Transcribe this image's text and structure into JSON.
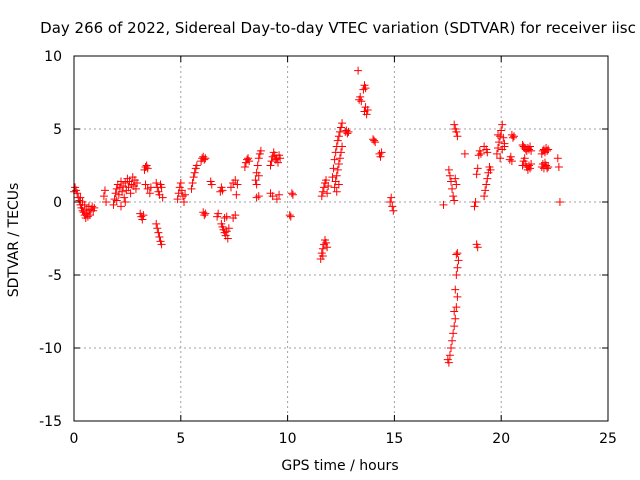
{
  "chart_data": {
    "type": "scatter",
    "title": "Day 266 of 2022, Sidereal Day-to-day VTEC variation (SDTVAR) for receiver iisc",
    "xlabel": "GPS time / hours",
    "ylabel": "SDTVAR / TECUs",
    "xlim": [
      0,
      25
    ],
    "ylim": [
      -15,
      10
    ],
    "xticks": [
      "0",
      "5",
      "10",
      "15",
      "20",
      "25"
    ],
    "yticks": [
      "10",
      "5",
      "0",
      "-5",
      "-10",
      "-15"
    ],
    "xtick_values": [
      0,
      5,
      10,
      15,
      20,
      25
    ],
    "ytick_values": [
      10,
      5,
      0,
      -5,
      -10,
      -15
    ],
    "grid": true,
    "marker": "plus",
    "color": "#ff0000",
    "series": [
      {
        "name": "SDTVAR",
        "points": [
          [
            0.0,
            0.7
          ],
          [
            0.05,
            1.0
          ],
          [
            0.1,
            0.8
          ],
          [
            0.15,
            0.6
          ],
          [
            0.2,
            0.3
          ],
          [
            0.25,
            0.1
          ],
          [
            0.3,
            -0.2
          ],
          [
            0.35,
            -0.4
          ],
          [
            0.4,
            -0.6
          ],
          [
            0.45,
            -0.7
          ],
          [
            0.5,
            -0.9
          ],
          [
            0.55,
            -1.1
          ],
          [
            0.6,
            -0.8
          ],
          [
            0.65,
            -1.0
          ],
          [
            0.7,
            -0.6
          ],
          [
            0.75,
            -0.9
          ],
          [
            0.8,
            -0.5
          ],
          [
            0.85,
            -0.3
          ],
          [
            0.9,
            -0.6
          ],
          [
            0.95,
            -0.4
          ],
          [
            0.3,
            0.3
          ],
          [
            0.4,
            0.0
          ],
          [
            0.5,
            -0.2
          ],
          [
            0.6,
            -0.5
          ],
          [
            0.7,
            -0.3
          ],
          [
            1.4,
            0.4
          ],
          [
            1.45,
            0.8
          ],
          [
            1.5,
            0.0
          ],
          [
            1.85,
            -0.2
          ],
          [
            1.9,
            0.2
          ],
          [
            1.95,
            0.6
          ],
          [
            2.0,
            0.9
          ],
          [
            2.05,
            1.2
          ],
          [
            2.1,
            0.5
          ],
          [
            2.15,
            1.0
          ],
          [
            2.2,
            1.4
          ],
          [
            2.25,
            0.7
          ],
          [
            2.3,
            1.1
          ],
          [
            2.35,
            0.3
          ],
          [
            2.4,
            1.3
          ],
          [
            2.45,
            0.8
          ],
          [
            2.5,
            1.6
          ],
          [
            2.55,
            1.0
          ],
          [
            2.6,
            1.4
          ],
          [
            2.65,
            0.6
          ],
          [
            2.7,
            1.2
          ],
          [
            2.75,
            1.7
          ],
          [
            2.8,
            1.1
          ],
          [
            2.85,
            1.5
          ],
          [
            2.9,
            0.9
          ],
          [
            2.95,
            1.3
          ],
          [
            2.0,
            0.1
          ],
          [
            2.2,
            -0.3
          ],
          [
            2.4,
            0.0
          ],
          [
            3.1,
            -0.8
          ],
          [
            3.15,
            -1.0
          ],
          [
            3.2,
            -1.2
          ],
          [
            3.25,
            -0.9
          ],
          [
            3.3,
            2.2
          ],
          [
            3.35,
            2.4
          ],
          [
            3.4,
            2.5
          ],
          [
            3.45,
            2.3
          ],
          [
            3.35,
            1.2
          ],
          [
            3.45,
            0.9
          ],
          [
            3.55,
            0.6
          ],
          [
            3.6,
            1.0
          ],
          [
            3.85,
            -1.5
          ],
          [
            3.9,
            -1.8
          ],
          [
            3.95,
            -2.1
          ],
          [
            4.0,
            -2.4
          ],
          [
            4.05,
            -2.7
          ],
          [
            4.1,
            -2.9
          ],
          [
            3.85,
            1.3
          ],
          [
            3.9,
            1.0
          ],
          [
            3.95,
            0.7
          ],
          [
            4.0,
            0.5
          ],
          [
            4.05,
            1.2
          ],
          [
            4.1,
            1.0
          ],
          [
            4.15,
            0.3
          ],
          [
            4.85,
            0.2
          ],
          [
            4.9,
            0.6
          ],
          [
            4.95,
            1.0
          ],
          [
            5.0,
            1.3
          ],
          [
            5.05,
            0.8
          ],
          [
            5.1,
            0.4
          ],
          [
            5.15,
            0.0
          ],
          [
            5.2,
            0.5
          ],
          [
            5.5,
            0.9
          ],
          [
            5.55,
            1.3
          ],
          [
            5.6,
            1.7
          ],
          [
            5.65,
            2.0
          ],
          [
            5.7,
            2.3
          ],
          [
            5.75,
            2.5
          ],
          [
            5.95,
            2.8
          ],
          [
            6.0,
            3.0
          ],
          [
            6.05,
            3.1
          ],
          [
            6.1,
            2.9
          ],
          [
            6.15,
            3.0
          ],
          [
            6.05,
            -0.7
          ],
          [
            6.1,
            -0.9
          ],
          [
            6.15,
            -0.8
          ],
          [
            6.4,
            1.4
          ],
          [
            6.45,
            1.2
          ],
          [
            6.7,
            -1.0
          ],
          [
            6.75,
            -0.8
          ],
          [
            6.85,
            0.7
          ],
          [
            6.9,
            1.0
          ],
          [
            6.95,
            0.8
          ],
          [
            6.9,
            -1.5
          ],
          [
            6.95,
            -1.7
          ],
          [
            7.0,
            -1.9
          ],
          [
            7.05,
            -2.1
          ],
          [
            7.1,
            -2.3
          ],
          [
            7.15,
            -2.0
          ],
          [
            7.2,
            -2.5
          ],
          [
            7.25,
            -1.8
          ],
          [
            7.05,
            -1.1
          ],
          [
            7.15,
            -1.0
          ],
          [
            7.35,
            1.0
          ],
          [
            7.45,
            1.3
          ],
          [
            7.55,
            1.5
          ],
          [
            7.65,
            1.2
          ],
          [
            7.45,
            -1.1
          ],
          [
            7.55,
            -0.9
          ],
          [
            7.6,
            0.5
          ],
          [
            8.0,
            2.4
          ],
          [
            8.05,
            2.7
          ],
          [
            8.1,
            2.9
          ],
          [
            8.15,
            3.0
          ],
          [
            8.2,
            2.8
          ],
          [
            8.5,
            1.5
          ],
          [
            8.55,
            2.0
          ],
          [
            8.6,
            2.5
          ],
          [
            8.65,
            3.0
          ],
          [
            8.7,
            3.3
          ],
          [
            8.75,
            3.5
          ],
          [
            8.55,
            1.2
          ],
          [
            8.65,
            1.8
          ],
          [
            8.55,
            0.3
          ],
          [
            8.65,
            0.4
          ],
          [
            9.2,
            2.5
          ],
          [
            9.25,
            2.8
          ],
          [
            9.3,
            3.1
          ],
          [
            9.35,
            3.4
          ],
          [
            9.4,
            3.2
          ],
          [
            9.45,
            2.9
          ],
          [
            9.5,
            3.0
          ],
          [
            9.55,
            2.7
          ],
          [
            9.6,
            3.2
          ],
          [
            9.65,
            3.0
          ],
          [
            9.2,
            0.6
          ],
          [
            9.3,
            0.4
          ],
          [
            9.5,
            0.2
          ],
          [
            9.6,
            0.5
          ],
          [
            10.1,
            -0.9
          ],
          [
            10.15,
            -1.0
          ],
          [
            10.2,
            0.6
          ],
          [
            10.25,
            0.5
          ],
          [
            11.55,
            -3.9
          ],
          [
            11.6,
            -3.5
          ],
          [
            11.65,
            -3.2
          ],
          [
            11.7,
            -2.9
          ],
          [
            11.75,
            -2.6
          ],
          [
            11.8,
            -2.8
          ],
          [
            11.85,
            -3.1
          ],
          [
            11.65,
            -3.7
          ],
          [
            11.6,
            0.4
          ],
          [
            11.65,
            0.7
          ],
          [
            11.7,
            1.0
          ],
          [
            11.75,
            1.3
          ],
          [
            11.8,
            1.5
          ],
          [
            11.85,
            0.6
          ],
          [
            11.9,
            1.1
          ],
          [
            12.1,
            1.7
          ],
          [
            12.15,
            2.3
          ],
          [
            12.2,
            2.9
          ],
          [
            12.25,
            3.4
          ],
          [
            12.3,
            3.8
          ],
          [
            12.35,
            4.2
          ],
          [
            12.4,
            4.5
          ],
          [
            12.45,
            4.8
          ],
          [
            12.5,
            5.1
          ],
          [
            12.55,
            5.4
          ],
          [
            12.2,
            1.0
          ],
          [
            12.25,
            1.4
          ],
          [
            12.3,
            1.8
          ],
          [
            12.35,
            2.2
          ],
          [
            12.4,
            2.6
          ],
          [
            12.45,
            3.0
          ],
          [
            12.5,
            3.4
          ],
          [
            12.55,
            3.8
          ],
          [
            12.3,
            0.7
          ],
          [
            12.4,
            1.2
          ],
          [
            12.7,
            4.8
          ],
          [
            12.75,
            4.9
          ],
          [
            12.8,
            4.7
          ],
          [
            12.85,
            4.8
          ],
          [
            13.3,
            9.0
          ],
          [
            13.35,
            7.0
          ],
          [
            13.4,
            7.2
          ],
          [
            13.45,
            6.9
          ],
          [
            13.55,
            7.7
          ],
          [
            13.6,
            8.0
          ],
          [
            13.65,
            7.8
          ],
          [
            13.6,
            6.2
          ],
          [
            13.65,
            6.5
          ],
          [
            13.7,
            6.0
          ],
          [
            13.75,
            6.3
          ],
          [
            14.0,
            4.3
          ],
          [
            14.05,
            4.2
          ],
          [
            14.1,
            4.1
          ],
          [
            14.3,
            3.3
          ],
          [
            14.35,
            3.1
          ],
          [
            14.4,
            3.4
          ],
          [
            14.8,
            0.0
          ],
          [
            14.85,
            0.3
          ],
          [
            14.9,
            -0.3
          ],
          [
            14.95,
            -0.6
          ],
          [
            17.3,
            -0.2
          ],
          [
            17.55,
            2.2
          ],
          [
            17.6,
            1.8
          ],
          [
            17.65,
            1.4
          ],
          [
            17.7,
            0.9
          ],
          [
            17.75,
            0.4
          ],
          [
            17.8,
            0.1
          ],
          [
            17.5,
            -10.8
          ],
          [
            17.55,
            -11.0
          ],
          [
            17.6,
            -10.5
          ],
          [
            17.65,
            -10.0
          ],
          [
            17.7,
            -9.5
          ],
          [
            17.75,
            -9.0
          ],
          [
            17.8,
            -8.5
          ],
          [
            17.85,
            -8.0
          ],
          [
            17.9,
            -7.2
          ],
          [
            17.95,
            -6.5
          ],
          [
            17.8,
            -7.5
          ],
          [
            17.85,
            -6.0
          ],
          [
            17.9,
            -5.0
          ],
          [
            17.95,
            -4.5
          ],
          [
            18.0,
            -4.0
          ],
          [
            17.9,
            -3.6
          ],
          [
            17.95,
            -3.5
          ],
          [
            17.8,
            5.3
          ],
          [
            17.85,
            5.0
          ],
          [
            17.9,
            4.8
          ],
          [
            17.95,
            4.5
          ],
          [
            17.85,
            1.6
          ],
          [
            17.9,
            1.2
          ],
          [
            18.3,
            3.3
          ],
          [
            18.75,
            -0.3
          ],
          [
            18.8,
            0.0
          ],
          [
            18.85,
            -2.9
          ],
          [
            18.9,
            -3.1
          ],
          [
            18.85,
            1.9
          ],
          [
            18.9,
            2.3
          ],
          [
            18.95,
            3.2
          ],
          [
            19.0,
            3.5
          ],
          [
            19.05,
            3.3
          ],
          [
            19.2,
            0.4
          ],
          [
            19.25,
            0.8
          ],
          [
            19.3,
            1.2
          ],
          [
            19.35,
            1.6
          ],
          [
            19.4,
            2.0
          ],
          [
            19.45,
            2.4
          ],
          [
            19.5,
            2.2
          ],
          [
            19.2,
            3.8
          ],
          [
            19.3,
            3.6
          ],
          [
            19.35,
            3.4
          ],
          [
            19.8,
            3.3
          ],
          [
            19.85,
            3.7
          ],
          [
            19.9,
            4.1
          ],
          [
            19.95,
            4.5
          ],
          [
            20.0,
            4.9
          ],
          [
            20.05,
            5.3
          ],
          [
            20.1,
            4.4
          ],
          [
            20.15,
            4.0
          ],
          [
            19.85,
            4.6
          ],
          [
            19.95,
            3.0
          ],
          [
            20.05,
            3.6
          ],
          [
            20.15,
            3.8
          ],
          [
            20.4,
            2.9
          ],
          [
            20.45,
            3.1
          ],
          [
            20.5,
            2.8
          ],
          [
            20.5,
            4.6
          ],
          [
            20.55,
            4.4
          ],
          [
            20.6,
            4.5
          ],
          [
            21.0,
            3.9
          ],
          [
            21.05,
            3.8
          ],
          [
            21.1,
            3.7
          ],
          [
            21.15,
            3.6
          ],
          [
            21.2,
            3.5
          ],
          [
            21.25,
            3.7
          ],
          [
            21.3,
            3.6
          ],
          [
            21.35,
            3.8
          ],
          [
            21.4,
            3.5
          ],
          [
            21.0,
            2.5
          ],
          [
            21.05,
            2.8
          ],
          [
            21.1,
            3.0
          ],
          [
            21.15,
            2.6
          ],
          [
            21.2,
            2.4
          ],
          [
            21.25,
            2.2
          ],
          [
            21.3,
            2.5
          ],
          [
            21.35,
            2.3
          ],
          [
            21.4,
            2.6
          ],
          [
            21.9,
            3.3
          ],
          [
            21.95,
            3.5
          ],
          [
            22.0,
            3.6
          ],
          [
            22.05,
            3.4
          ],
          [
            22.1,
            3.7
          ],
          [
            22.15,
            3.5
          ],
          [
            22.2,
            3.6
          ],
          [
            21.9,
            2.4
          ],
          [
            21.95,
            2.6
          ],
          [
            22.0,
            2.3
          ],
          [
            22.05,
            2.7
          ],
          [
            22.1,
            2.5
          ],
          [
            22.15,
            2.3
          ],
          [
            22.2,
            2.4
          ],
          [
            22.65,
            3.0
          ],
          [
            22.7,
            2.4
          ],
          [
            22.75,
            0.0
          ]
        ]
      }
    ]
  }
}
